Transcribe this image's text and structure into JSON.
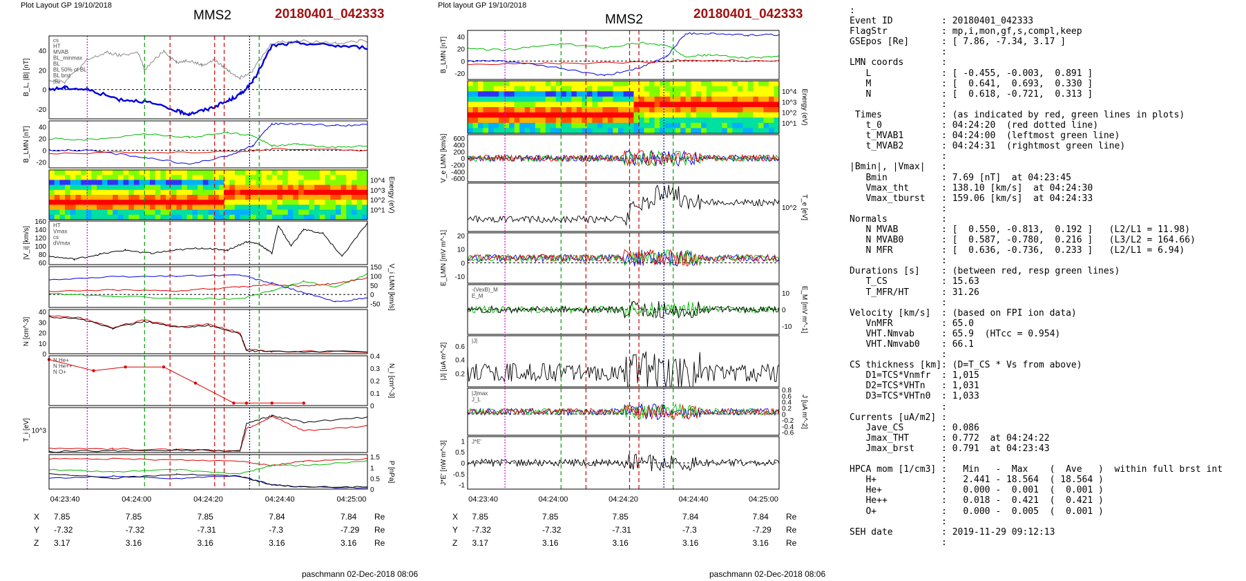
{
  "left_panel": {
    "header": "Plot Layout GP 19/10/2018",
    "title": "MMS2",
    "event": "20180401_042333",
    "footer": "paschmann 02-Dec-2018 08:06",
    "time_ticks": [
      "04:23:40",
      "04:24:00",
      "04:24:20",
      "04:24:40",
      "04:25:00"
    ],
    "pos_rows": [
      {
        "label": "X",
        "values": [
          "7.85",
          "7.85",
          "7.85",
          "7.84",
          "7.84"
        ],
        "unit": "Re"
      },
      {
        "label": "Y",
        "values": [
          "-7.32",
          "-7.32",
          "-7.31",
          "-7.3",
          "-7.29"
        ],
        "unit": "Re"
      },
      {
        "label": "Z",
        "values": [
          "3.17",
          "3.16",
          "3.16",
          "3.16",
          "3.16"
        ],
        "unit": "Re"
      }
    ]
  },
  "right_panel": {
    "header": "Plot layout GP 19/10/2018",
    "title": "MMS2",
    "event": "20180401_042333",
    "footer": "paschmann 02-Dec-2018 08:06",
    "time_ticks": [
      "04:23:40",
      "04:24:00",
      "04:24:20",
      "04:24:40",
      "04:25:00"
    ],
    "pos_rows": [
      {
        "label": "X",
        "values": [
          "7.85",
          "7.85",
          "7.85",
          "7.84",
          "7.84"
        ],
        "unit": "Re"
      },
      {
        "label": "Y",
        "values": [
          "-7.32",
          "-7.32",
          "-7.31",
          "-7.3",
          "-7.29"
        ],
        "unit": "Re"
      },
      {
        "label": "Z",
        "values": [
          "3.17",
          "3.16",
          "3.16",
          "3.16",
          "3.16"
        ],
        "unit": "Re"
      }
    ]
  },
  "chart_data": [
    {
      "type": "line",
      "panel": "left-1",
      "ylabel": "B_L, |B| [nT]",
      "ylim": [
        -30,
        55
      ],
      "yticks": [
        -20,
        0,
        20,
        40
      ],
      "legend": [
        "cs",
        "HT",
        "MVAB",
        "BL_minmax",
        "BL",
        "BL 50% of BL",
        "BL brst",
        "|B|"
      ],
      "series": [
        {
          "name": "BL",
          "color": "#0000dd",
          "x": [
            0,
            5,
            12,
            22,
            30,
            40,
            44,
            50,
            56,
            60,
            64,
            70,
            78,
            90,
            100
          ],
          "y": [
            0,
            2,
            0,
            -10,
            -12,
            -22,
            -25,
            -20,
            -12,
            -5,
            8,
            45,
            48,
            45,
            43
          ]
        },
        {
          "name": "|B|",
          "color": "#888888",
          "x": [
            0,
            5,
            12,
            18,
            22,
            28,
            30,
            36,
            40,
            44,
            48,
            52,
            56,
            60,
            64,
            70,
            78,
            90,
            100
          ],
          "y": [
            10,
            8,
            30,
            38,
            35,
            38,
            20,
            40,
            28,
            30,
            25,
            30,
            20,
            12,
            20,
            48,
            50,
            48,
            50
          ]
        }
      ]
    },
    {
      "type": "line",
      "panel": "left-2",
      "ylabel": "B_LMN [nT]",
      "ylim": [
        -30,
        50
      ],
      "yticks": [
        -20,
        0,
        20,
        40
      ],
      "series": [
        {
          "name": "BL",
          "color": "#0000dd",
          "x": [
            0,
            12,
            30,
            44,
            56,
            64,
            70,
            78,
            90,
            100
          ],
          "y": [
            0,
            0,
            -12,
            -24,
            -10,
            8,
            45,
            45,
            42,
            43
          ]
        },
        {
          "name": "BM",
          "color": "#00bb00",
          "x": [
            0,
            12,
            30,
            44,
            56,
            64,
            70,
            78,
            90,
            100
          ],
          "y": [
            20,
            18,
            28,
            22,
            30,
            25,
            8,
            10,
            5,
            8
          ]
        },
        {
          "name": "BN",
          "color": "#dd0000",
          "x": [
            0,
            30,
            60,
            70,
            100
          ],
          "y": [
            -5,
            -4,
            -2,
            2,
            0
          ]
        }
      ]
    },
    {
      "type": "heatmap",
      "panel": "left-3",
      "ylabel": "Energy (eV)",
      "yticks": [
        "10^1",
        "10^2",
        "10^3",
        "10^4"
      ]
    },
    {
      "type": "line",
      "panel": "left-4",
      "ylabel": "|V_i| [km/s]",
      "ylim": [
        55,
        160
      ],
      "yticks": [
        60,
        80,
        100,
        120,
        140,
        160
      ],
      "legend": [
        "HT",
        "Vmax",
        "cs",
        "dVmax"
      ],
      "series": [
        {
          "name": "|V_i|",
          "color": "#000000",
          "x": [
            0,
            8,
            16,
            24,
            32,
            40,
            48,
            56,
            62,
            66,
            70,
            72,
            76,
            80,
            86,
            92,
            100
          ],
          "y": [
            75,
            68,
            80,
            90,
            82,
            90,
            95,
            90,
            110,
            105,
            82,
            150,
            100,
            140,
            130,
            75,
            155
          ]
        }
      ]
    },
    {
      "type": "line",
      "panel": "left-5",
      "ylabel": "V_i LMN [km/s]",
      "ylim": [
        -70,
        150
      ],
      "yticks": [
        -50,
        0,
        50,
        100,
        150
      ],
      "series": [
        {
          "name": "VL",
          "color": "#0000dd",
          "x": [
            0,
            20,
            40,
            60,
            70,
            80,
            90,
            100
          ],
          "y": [
            80,
            95,
            100,
            105,
            60,
            10,
            -40,
            -20
          ]
        },
        {
          "name": "VM",
          "color": "#00bb00",
          "x": [
            0,
            20,
            40,
            60,
            70,
            80,
            90,
            100
          ],
          "y": [
            5,
            -10,
            -20,
            -25,
            20,
            70,
            40,
            110
          ]
        },
        {
          "name": "VN",
          "color": "#dd0000",
          "x": [
            0,
            20,
            40,
            60,
            70,
            80,
            90,
            100
          ],
          "y": [
            15,
            25,
            20,
            40,
            55,
            45,
            60,
            90
          ]
        }
      ]
    },
    {
      "type": "line",
      "panel": "left-6",
      "ylabel": "N [cm^-3]",
      "ylim": [
        0,
        42
      ],
      "yticks": [
        0,
        10,
        20,
        30,
        40
      ],
      "series": [
        {
          "name": "Ne",
          "color": "#dd0000",
          "x": [
            0,
            10,
            20,
            30,
            40,
            50,
            60,
            62,
            70,
            100
          ],
          "y": [
            36,
            34,
            25,
            32,
            26,
            28,
            20,
            4,
            2,
            2
          ]
        },
        {
          "name": "Ni",
          "color": "#000000",
          "x": [
            0,
            10,
            20,
            30,
            40,
            50,
            60,
            62,
            70,
            100
          ],
          "y": [
            35,
            33,
            24,
            31,
            25,
            27,
            19,
            3,
            2,
            2
          ]
        }
      ]
    },
    {
      "type": "line",
      "panel": "left-7",
      "ylabel": "N_i [cm^-3]",
      "ylim": [
        0,
        0.4
      ],
      "yticks": [
        0.0,
        0.1,
        0.2,
        0.3,
        0.4
      ],
      "legend": [
        "N He+",
        "N He++",
        "N O+"
      ],
      "series": [
        {
          "name": "N He++",
          "color": "#dd0000",
          "x": [
            0,
            14,
            24,
            36,
            46,
            58,
            62,
            70,
            80
          ],
          "y": [
            0.37,
            0.28,
            0.31,
            0.31,
            0.18,
            0.02,
            0.02,
            0.02,
            0.02
          ]
        },
        {
          "name": "N O+",
          "color": "#0000dd",
          "x": [
            0,
            20,
            40,
            60,
            80
          ],
          "y": [
            0.0,
            0.0,
            0.0,
            0.0,
            0.0
          ]
        }
      ]
    },
    {
      "type": "line",
      "panel": "left-8",
      "ylabel": "T_i [eV]",
      "yticks": [
        "10^3"
      ],
      "series": [
        {
          "name": "T_par",
          "color": "#dd0000",
          "x": [
            0,
            20,
            40,
            60,
            62,
            70,
            80,
            100
          ],
          "y": [
            1200,
            1100,
            1000,
            900,
            3200,
            4500,
            3000,
            3500
          ]
        },
        {
          "name": "T_perp",
          "color": "#000000",
          "x": [
            0,
            20,
            40,
            60,
            62,
            70,
            80,
            100
          ],
          "y": [
            600,
            700,
            800,
            700,
            4000,
            5000,
            4200,
            4800
          ]
        }
      ]
    },
    {
      "type": "line",
      "panel": "left-9",
      "ylabel": "P [nPa]",
      "ylim": [
        0,
        1.6
      ],
      "yticks": [
        0.0,
        0.5,
        1.0,
        1.5
      ],
      "series": [
        {
          "name": "Pt",
          "color": "#dd0000",
          "x": [
            0,
            20,
            40,
            60,
            70,
            80,
            100
          ],
          "y": [
            1.4,
            1.4,
            1.35,
            1.3,
            1.1,
            1.3,
            1.4
          ]
        },
        {
          "name": "Pb",
          "color": "#00bb00",
          "x": [
            0,
            20,
            40,
            60,
            70,
            80,
            100
          ],
          "y": [
            0.9,
            0.8,
            0.9,
            0.7,
            1.1,
            1.1,
            1.3
          ]
        },
        {
          "name": "Pi",
          "color": "#0000dd",
          "x": [
            0,
            20,
            40,
            60,
            70,
            80,
            100
          ],
          "y": [
            0.5,
            0.6,
            0.5,
            0.6,
            0.2,
            0.1,
            0.05
          ]
        },
        {
          "name": "Pkin",
          "color": "#000000",
          "x": [
            0,
            20,
            40,
            60,
            70,
            80,
            100
          ],
          "y": [
            0.7,
            0.5,
            0.7,
            0.6,
            0.2,
            0.1,
            0.1
          ]
        }
      ]
    },
    {
      "type": "line",
      "panel": "right-1",
      "ylabel": "B_LMN [nT]",
      "ylim": [
        -30,
        50
      ],
      "yticks": [
        -20,
        0,
        20,
        40
      ],
      "series": [
        {
          "name": "BL",
          "color": "#0000dd",
          "x": [
            0,
            12,
            30,
            44,
            56,
            64,
            70,
            78,
            90,
            100
          ],
          "y": [
            0,
            0,
            -12,
            -24,
            -10,
            8,
            45,
            45,
            42,
            43
          ]
        },
        {
          "name": "BM",
          "color": "#00bb00",
          "x": [
            0,
            12,
            30,
            44,
            56,
            64,
            70,
            78,
            90,
            100
          ],
          "y": [
            20,
            18,
            28,
            22,
            30,
            25,
            8,
            10,
            5,
            8
          ]
        },
        {
          "name": "BN",
          "color": "#dd0000",
          "x": [
            0,
            30,
            60,
            70,
            100
          ],
          "y": [
            -5,
            -4,
            -2,
            2,
            0
          ]
        }
      ]
    },
    {
      "type": "heatmap",
      "panel": "right-2",
      "ylabel": "Energy (eV)",
      "yticks": [
        "10^1",
        "10^2",
        "10^3",
        "10^4"
      ]
    },
    {
      "type": "line",
      "panel": "right-3",
      "ylabel": "V_e LMN [km/s]",
      "ylim": [
        -700,
        700
      ],
      "yticks": [
        -600,
        -400,
        -200,
        0,
        200,
        400,
        600
      ]
    },
    {
      "type": "line",
      "panel": "right-4",
      "ylabel": "T_e [eV]",
      "yticks": [
        "10^2"
      ]
    },
    {
      "type": "line",
      "panel": "right-5",
      "ylabel": "E_LMN [mV m^-1]",
      "ylim": [
        -15,
        22
      ],
      "yticks": [
        -10,
        0,
        10,
        20
      ]
    },
    {
      "type": "line",
      "panel": "right-6",
      "ylabel": "E_M [mV m^-1]",
      "ylim": [
        -15,
        15
      ],
      "yticks": [
        -10,
        0,
        10
      ],
      "legend": [
        "-(VexB)_M",
        "E_M"
      ]
    },
    {
      "type": "line",
      "panel": "right-7",
      "ylabel": "|J| [uA m^-2]",
      "ylim": [
        0,
        0.75
      ],
      "yticks": [
        0.2,
        0.4,
        0.6
      ],
      "legend": [
        "|J|"
      ]
    },
    {
      "type": "line",
      "panel": "right-8",
      "ylabel": "J [uA m^-2]",
      "ylim": [
        -0.7,
        0.85
      ],
      "yticks": [
        -0.6,
        -0.4,
        -0.2,
        0.0,
        0.2,
        0.4,
        0.6,
        0.8
      ],
      "legend": [
        "|J|max",
        "J_L"
      ]
    },
    {
      "type": "line",
      "panel": "right-9",
      "ylabel": "J*E' [nW m^-3]",
      "ylim": [
        -1.2,
        1.2
      ],
      "yticks": [
        -1.0,
        -0.5,
        0.0,
        0.5,
        1.0
      ],
      "legend": [
        "J*E'"
      ]
    }
  ],
  "info": {
    "lines": [
      ":",
      "Event ID         : 20180401_042333",
      "FlagStr          : mp,i,mon,gf,s,compl,keep",
      "GSEpos [Re]      : [ 7.86, -7.34, 3.17 ]",
      "                 :",
      "LMN coords       :",
      "   L             : [ -0.455, -0.003,  0.891 ]",
      "   M             : [  0.641,  0.693,  0.330 ]",
      "   N             : [  0.618, -0.721,  0.313 ]",
      "                 :",
      " Times           : (as indicated by red, green lines in plots)",
      "   t_0           : 04:24:20  (red dotted line)",
      "   t_MVAB1       : 04:24:00  (leftmost green line)",
      "   t_MVAB2       : 04:24:31  (rightmost green line)",
      "                 :",
      "|Bmin|, |Vmax|   :",
      "   Bmin          : 7.69 [nT]  at 04:23:45",
      "   Vmax_tht      : 138.10 [km/s]  at 04:24:30",
      "   Vmax_tburst   : 159.06 [km/s]  at 04:24:33",
      "                 :",
      "Normals          :",
      "   N MVAB        : [  0.550, -0.813,  0.192 ]   (L2/L1 = 11.98)",
      "   N MVAB0       : [  0.587, -0.780,  0.216 ]   (L3/L2 = 164.66)",
      "   N MFR         : [  0.636, -0.736,  0.233 ]   (L2/L1 = 6.94)",
      "                 :",
      "Durations [s]    : (between red, resp green lines)",
      "   T_CS          : 15.63",
      "   T_MFR/HT      : 31.26",
      "                 :",
      "Velocity [km/s]  : (based on FPI ion data)",
      "   VnMFR         : 65.0",
      "   VHT.Nmvab     : 65.9  (HTcc = 0.954)",
      "   VHT.Nmvab0    : 66.1",
      "                 :",
      "CS thickness [km]: (D=T_CS * Vs from above)",
      "   D1=TCS*Vnmfr  : 1,015",
      "   D2=TCS*VHTn   : 1,031",
      "   D3=TCS*VHTn0  : 1,033",
      "                 :",
      "Currents [uA/m2] :",
      "   Jave_CS       : 0.086",
      "   Jmax_THT      : 0.772  at 04:24:22",
      "   Jmax_brst     : 0.791  at 04:23:43",
      "                 :",
      "HPCA mom [1/cm3] :   Min   -  Max    (  Ave   )  within full brst int",
      "   H+            :   2.441 - 18.564  ( 18.564 )",
      "   He+           :   0.000 -  0.001  (  0.001 )",
      "   He++          :   0.018 -  0.421  (  0.421 )",
      "   O+            :   0.000 -  0.005  (  0.001 )",
      "                 :",
      "SEH date         : 2019-11-29 09:12:13",
      "                 :"
    ]
  }
}
